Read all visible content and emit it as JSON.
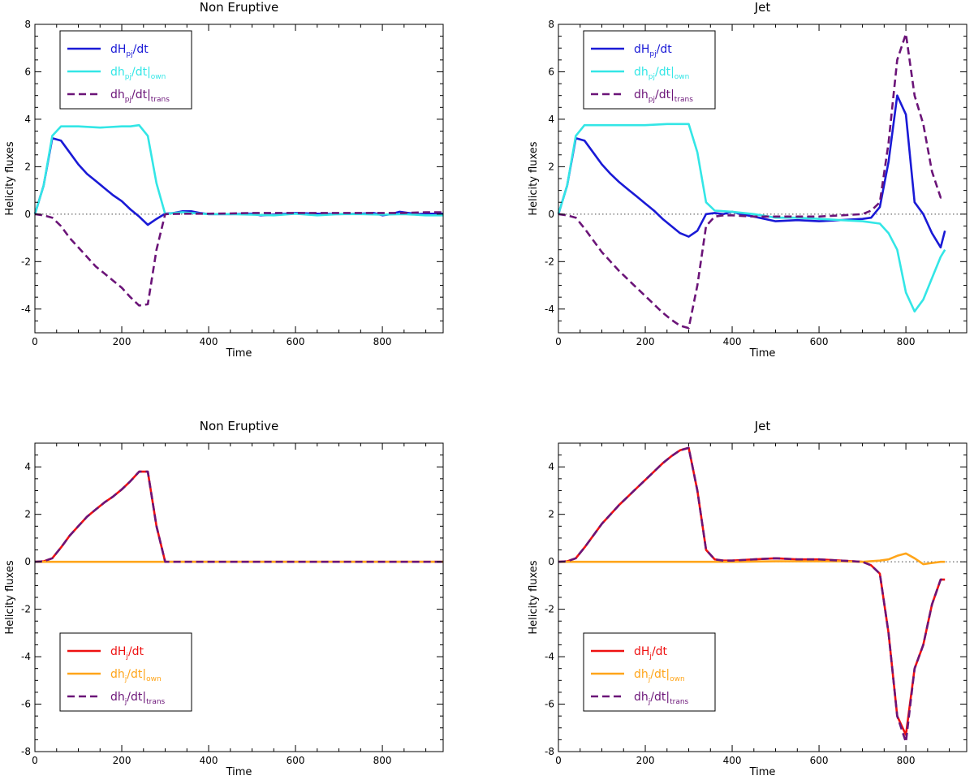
{
  "chart_data": [
    {
      "type": "line",
      "title": "Non Eruptive",
      "xlabel": "Time",
      "ylabel": "Helicity fluxes",
      "xlim": [
        0,
        940
      ],
      "ylim": [
        -5,
        8
      ],
      "xticks": [
        0,
        200,
        400,
        600,
        800
      ],
      "yticks": [
        -4,
        -2,
        0,
        2,
        4,
        6,
        8
      ],
      "legend_position": "top-left",
      "series": [
        {
          "name": "dH_pj/dt",
          "label_main": "dH",
          "label_sub": "pj",
          "label_tail": "/dt",
          "label_tail_sub": "",
          "color": "#1a1ad6",
          "dash": "solid",
          "x": [
            0,
            20,
            40,
            60,
            80,
            100,
            120,
            140,
            160,
            180,
            200,
            220,
            240,
            260,
            280,
            300,
            320,
            340,
            360,
            380,
            400,
            450,
            500,
            520,
            550,
            600,
            650,
            700,
            750,
            780,
            800,
            820,
            840,
            860,
            880,
            900,
            940
          ],
          "y": [
            0,
            1.2,
            3.2,
            3.1,
            2.6,
            2.1,
            1.7,
            1.4,
            1.1,
            0.8,
            0.55,
            0.2,
            -0.1,
            -0.45,
            -0.2,
            0.02,
            0.05,
            0.12,
            0.12,
            0.05,
            0.0,
            0.0,
            0.02,
            -0.05,
            -0.02,
            0.05,
            0.02,
            0.0,
            0.02,
            0.05,
            -0.05,
            0.0,
            0.1,
            0.05,
            0.0,
            0.02,
            0.02
          ]
        },
        {
          "name": "dh_pj/dt|own",
          "label_main": "dh",
          "label_sub": "pj",
          "label_tail": "/dt|",
          "label_tail_sub": "own",
          "color": "#33e6e6",
          "dash": "solid",
          "x": [
            0,
            20,
            40,
            60,
            80,
            100,
            150,
            200,
            220,
            240,
            260,
            280,
            300,
            320,
            340,
            360,
            400,
            450,
            500,
            550,
            600,
            650,
            700,
            750,
            800,
            850,
            900,
            940
          ],
          "y": [
            0,
            1.2,
            3.3,
            3.7,
            3.7,
            3.7,
            3.65,
            3.7,
            3.7,
            3.75,
            3.3,
            1.3,
            0.0,
            0.05,
            0.08,
            0.05,
            0.0,
            0.0,
            -0.02,
            -0.05,
            0.02,
            -0.05,
            0.0,
            0.0,
            -0.02,
            0.0,
            -0.05,
            -0.05
          ]
        },
        {
          "name": "dh_pj/dt|trans",
          "label_main": "dh",
          "label_sub": "pj",
          "label_tail": "/dt|",
          "label_tail_sub": "trans",
          "color": "#6b1478",
          "dash": "dashed",
          "x": [
            0,
            20,
            40,
            60,
            80,
            100,
            120,
            140,
            160,
            180,
            200,
            220,
            240,
            260,
            280,
            300,
            350,
            400,
            450,
            500,
            550,
            600,
            650,
            700,
            750,
            800,
            850,
            900,
            940
          ],
          "y": [
            0,
            -0.05,
            -0.15,
            -0.5,
            -1.0,
            -1.4,
            -1.8,
            -2.2,
            -2.5,
            -2.8,
            -3.1,
            -3.5,
            -3.85,
            -3.8,
            -1.5,
            0.0,
            0.02,
            0.02,
            0.03,
            0.05,
            0.05,
            0.05,
            0.05,
            0.05,
            0.05,
            0.05,
            0.05,
            0.08,
            0.08
          ]
        }
      ]
    },
    {
      "type": "line",
      "title": "Jet",
      "xlabel": "Time",
      "ylabel": "Helicity fluxes",
      "xlim": [
        0,
        940
      ],
      "ylim": [
        -5,
        8
      ],
      "xticks": [
        0,
        200,
        400,
        600,
        800
      ],
      "yticks": [
        -4,
        -2,
        0,
        2,
        4,
        6,
        8
      ],
      "legend_position": "top-left",
      "series": [
        {
          "name": "dH_pj/dt",
          "label_main": "dH",
          "label_sub": "pj",
          "label_tail": "/dt",
          "label_tail_sub": "",
          "color": "#1a1ad6",
          "dash": "solid",
          "x": [
            0,
            20,
            40,
            60,
            80,
            100,
            120,
            140,
            160,
            180,
            200,
            220,
            240,
            260,
            280,
            300,
            320,
            340,
            360,
            380,
            400,
            420,
            450,
            500,
            550,
            600,
            650,
            700,
            720,
            740,
            760,
            780,
            800,
            820,
            840,
            860,
            880,
            890
          ],
          "y": [
            0,
            1.2,
            3.2,
            3.1,
            2.6,
            2.1,
            1.7,
            1.35,
            1.05,
            0.75,
            0.45,
            0.15,
            -0.2,
            -0.5,
            -0.8,
            -0.95,
            -0.7,
            0.0,
            0.05,
            0.0,
            0.1,
            0.0,
            -0.1,
            -0.3,
            -0.25,
            -0.3,
            -0.25,
            -0.2,
            -0.15,
            0.3,
            2.2,
            5.0,
            4.2,
            0.5,
            0.0,
            -0.8,
            -1.4,
            -0.7
          ]
        },
        {
          "name": "dh_pj/dt|own",
          "label_main": "dh",
          "label_sub": "pj",
          "label_tail": "/dt|",
          "label_tail_sub": "own",
          "color": "#33e6e6",
          "dash": "solid",
          "x": [
            0,
            20,
            40,
            60,
            80,
            100,
            150,
            200,
            250,
            280,
            300,
            320,
            340,
            360,
            400,
            450,
            500,
            550,
            600,
            650,
            700,
            740,
            760,
            780,
            800,
            820,
            840,
            860,
            880,
            890
          ],
          "y": [
            0,
            1.2,
            3.3,
            3.75,
            3.75,
            3.75,
            3.75,
            3.75,
            3.8,
            3.8,
            3.8,
            2.6,
            0.5,
            0.15,
            0.1,
            0.0,
            -0.15,
            -0.15,
            -0.2,
            -0.25,
            -0.3,
            -0.4,
            -0.8,
            -1.5,
            -3.3,
            -4.1,
            -3.6,
            -2.7,
            -1.8,
            -1.5
          ]
        },
        {
          "name": "dh_pj/dt|trans",
          "label_main": "dh",
          "label_sub": "pj",
          "label_tail": "/dt|",
          "label_tail_sub": "trans",
          "color": "#6b1478",
          "dash": "dashed",
          "x": [
            0,
            20,
            40,
            60,
            80,
            100,
            120,
            140,
            160,
            180,
            200,
            220,
            240,
            260,
            280,
            300,
            320,
            340,
            360,
            380,
            400,
            450,
            500,
            550,
            600,
            650,
            700,
            720,
            740,
            760,
            780,
            800,
            820,
            840,
            860,
            880,
            890
          ],
          "y": [
            0,
            -0.05,
            -0.15,
            -0.6,
            -1.1,
            -1.6,
            -2.0,
            -2.4,
            -2.75,
            -3.1,
            -3.45,
            -3.8,
            -4.15,
            -4.45,
            -4.7,
            -4.8,
            -3.0,
            -0.5,
            -0.1,
            -0.05,
            -0.05,
            -0.1,
            -0.1,
            -0.1,
            -0.1,
            -0.05,
            0.0,
            0.15,
            0.5,
            3.0,
            6.5,
            7.6,
            5.0,
            3.8,
            1.8,
            0.7,
            0.7
          ]
        }
      ]
    },
    {
      "type": "line",
      "title": "Non Eruptive",
      "xlabel": "Time",
      "ylabel": "Helicity fluxes",
      "xlim": [
        0,
        940
      ],
      "ylim": [
        -8,
        5
      ],
      "xticks": [
        0,
        200,
        400,
        600,
        800
      ],
      "yticks": [
        -8,
        -6,
        -4,
        -2,
        0,
        2,
        4
      ],
      "legend_position": "bottom-left",
      "series": [
        {
          "name": "dH_j/dt",
          "label_main": "dH",
          "label_sub": "j",
          "label_tail": "/dt",
          "label_tail_sub": "",
          "color": "#ee1111",
          "dash": "solid",
          "x": [
            0,
            20,
            40,
            60,
            80,
            100,
            120,
            140,
            160,
            180,
            200,
            220,
            240,
            260,
            280,
            300,
            350,
            400,
            500,
            600,
            700,
            800,
            940
          ],
          "y": [
            0,
            0.02,
            0.15,
            0.6,
            1.1,
            1.5,
            1.9,
            2.2,
            2.5,
            2.75,
            3.05,
            3.4,
            3.8,
            3.8,
            1.5,
            0.0,
            0.0,
            0.0,
            0.0,
            0.0,
            0.0,
            0.0,
            0.0
          ]
        },
        {
          "name": "dh_j/dt|own",
          "label_main": "dh",
          "label_sub": "j",
          "label_tail": "/dt|",
          "label_tail_sub": "own",
          "color": "#ffa51a",
          "dash": "solid",
          "x": [
            0,
            200,
            400,
            600,
            800,
            940
          ],
          "y": [
            0,
            0,
            0,
            0,
            0,
            0
          ]
        },
        {
          "name": "dh_j/dt|trans",
          "label_main": "dh",
          "label_sub": "j",
          "label_tail": "/dt|",
          "label_tail_sub": "trans",
          "color": "#6b1478",
          "dash": "dashed",
          "x": [
            0,
            20,
            40,
            60,
            80,
            100,
            120,
            140,
            160,
            180,
            200,
            220,
            240,
            260,
            280,
            300,
            350,
            400,
            500,
            600,
            700,
            800,
            940
          ],
          "y": [
            0,
            0.02,
            0.15,
            0.6,
            1.1,
            1.5,
            1.9,
            2.2,
            2.5,
            2.75,
            3.05,
            3.4,
            3.8,
            3.8,
            1.5,
            0.0,
            0.0,
            0.0,
            0.0,
            0.0,
            0.0,
            0.0,
            0.0
          ]
        }
      ]
    },
    {
      "type": "line",
      "title": "Jet",
      "xlabel": "Time",
      "ylabel": "Helicity fluxes",
      "xlim": [
        0,
        940
      ],
      "ylim": [
        -8,
        5
      ],
      "xticks": [
        0,
        200,
        400,
        600,
        800
      ],
      "yticks": [
        -8,
        -6,
        -4,
        -2,
        0,
        2,
        4
      ],
      "legend_position": "bottom-left",
      "series": [
        {
          "name": "dH_j/dt",
          "label_main": "dH",
          "label_sub": "j",
          "label_tail": "/dt",
          "label_tail_sub": "",
          "color": "#ee1111",
          "dash": "solid",
          "x": [
            0,
            20,
            40,
            60,
            80,
            100,
            120,
            140,
            160,
            180,
            200,
            220,
            240,
            260,
            280,
            300,
            320,
            340,
            360,
            380,
            400,
            450,
            500,
            550,
            600,
            650,
            700,
            720,
            740,
            760,
            780,
            800,
            820,
            840,
            860,
            880,
            890
          ],
          "y": [
            0,
            0.02,
            0.15,
            0.6,
            1.1,
            1.6,
            2.0,
            2.4,
            2.75,
            3.1,
            3.45,
            3.8,
            4.15,
            4.45,
            4.7,
            4.8,
            3.0,
            0.5,
            0.1,
            0.05,
            0.05,
            0.1,
            0.15,
            0.1,
            0.1,
            0.05,
            0.0,
            -0.15,
            -0.5,
            -3.0,
            -6.5,
            -7.3,
            -4.5,
            -3.5,
            -1.8,
            -0.75,
            -0.75
          ]
        },
        {
          "name": "dh_j/dt|own",
          "label_main": "dh",
          "label_sub": "j",
          "label_tail": "/dt|",
          "label_tail_sub": "own",
          "color": "#ffa51a",
          "dash": "solid",
          "x": [
            0,
            100,
            200,
            300,
            400,
            500,
            600,
            650,
            700,
            740,
            760,
            780,
            800,
            820,
            840,
            860,
            880,
            890
          ],
          "y": [
            0,
            0,
            0,
            0,
            0,
            0.02,
            0.02,
            0.02,
            0.0,
            0.05,
            0.1,
            0.25,
            0.35,
            0.15,
            -0.1,
            -0.05,
            0.0,
            0.0
          ]
        },
        {
          "name": "dh_j/dt|trans",
          "label_main": "dh",
          "label_sub": "j",
          "label_tail": "/dt|",
          "label_tail_sub": "trans",
          "color": "#6b1478",
          "dash": "dashed",
          "x": [
            0,
            20,
            40,
            60,
            80,
            100,
            120,
            140,
            160,
            180,
            200,
            220,
            240,
            260,
            280,
            300,
            320,
            340,
            360,
            380,
            400,
            450,
            500,
            550,
            600,
            650,
            700,
            720,
            740,
            760,
            780,
            800,
            820,
            840,
            860,
            880,
            890
          ],
          "y": [
            0,
            0.02,
            0.15,
            0.6,
            1.1,
            1.6,
            2.0,
            2.4,
            2.75,
            3.1,
            3.45,
            3.8,
            4.15,
            4.45,
            4.7,
            4.8,
            3.0,
            0.5,
            0.1,
            0.05,
            0.05,
            0.1,
            0.15,
            0.1,
            0.1,
            0.05,
            0.0,
            -0.15,
            -0.5,
            -3.0,
            -6.5,
            -7.6,
            -4.5,
            -3.5,
            -1.8,
            -0.75,
            -0.75
          ]
        }
      ]
    }
  ]
}
